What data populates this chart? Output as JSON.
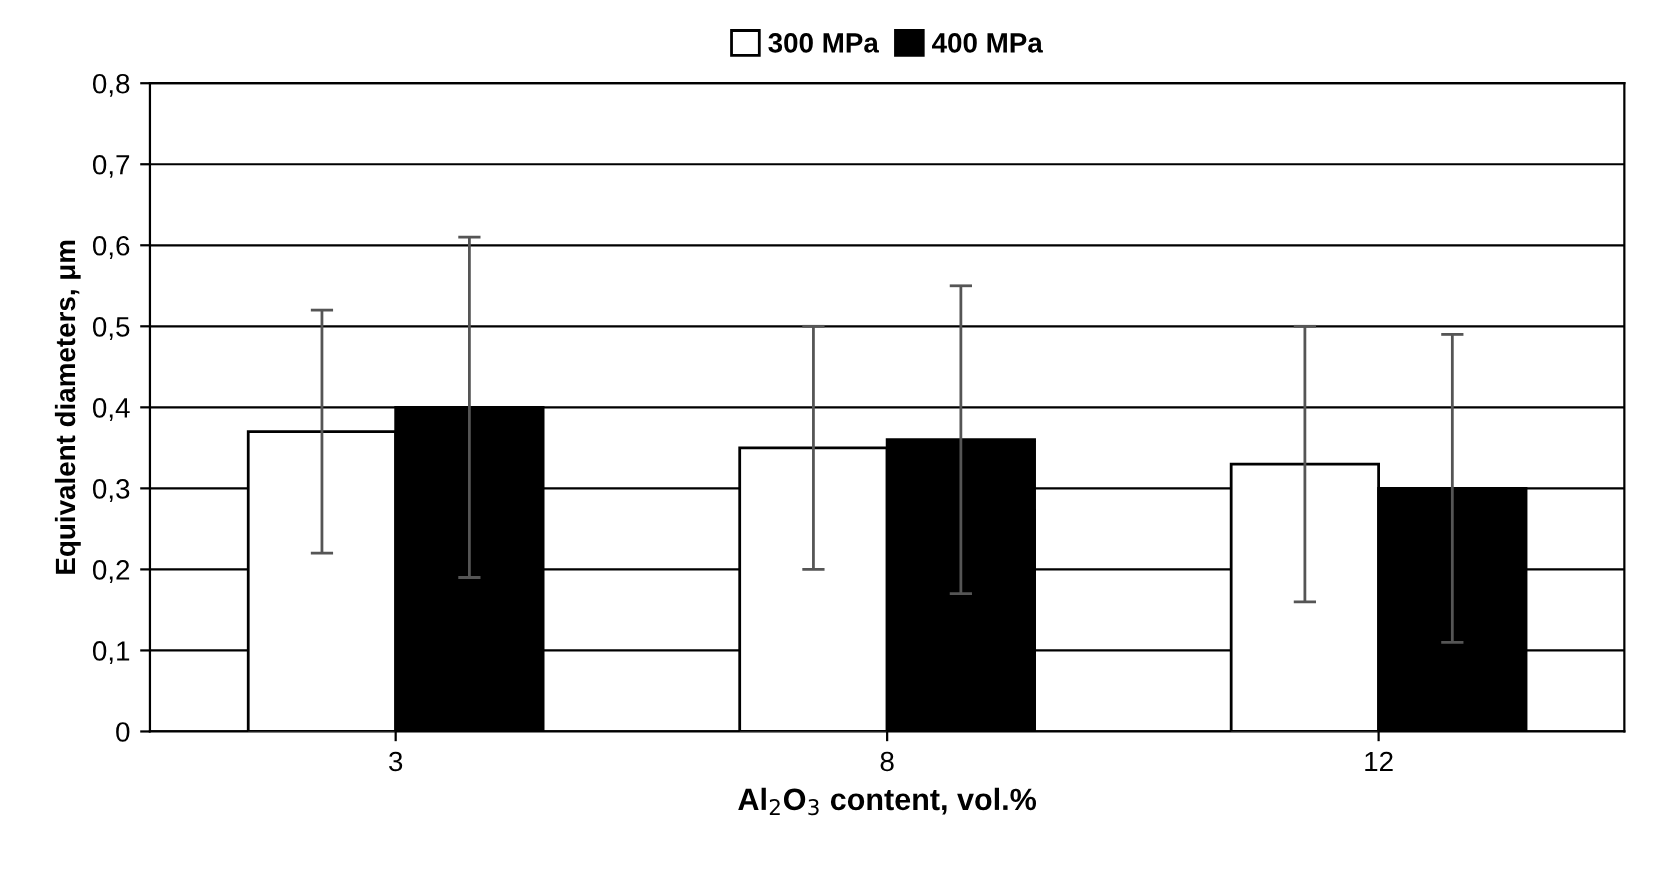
{
  "chart_data": {
    "type": "bar",
    "xlabel": "Al$_{2}$O$_{3}$ content, vol.%",
    "ylabel": "Equivalent diameters, μm",
    "categories": [
      "3",
      "8",
      "12"
    ],
    "series": [
      {
        "name": "300 MPa",
        "color": "#ffffff",
        "values": [
          0.37,
          0.35,
          0.33
        ],
        "errors": [
          [
            0.22,
            0.52
          ],
          [
            0.2,
            0.5
          ],
          [
            0.16,
            0.5
          ]
        ]
      },
      {
        "name": "400 MPa",
        "color": "#000000",
        "values": [
          0.4,
          0.36,
          0.3
        ],
        "errors": [
          [
            0.19,
            0.61
          ],
          [
            0.17,
            0.55
          ],
          [
            0.11,
            0.49
          ]
        ]
      }
    ],
    "ylim": [
      0,
      0.8
    ],
    "yticks": [
      {
        "value": 0,
        "label": "0"
      },
      {
        "value": 0.1,
        "label": "0,1"
      },
      {
        "value": 0.2,
        "label": "0,2"
      },
      {
        "value": 0.3,
        "label": "0,3"
      },
      {
        "value": 0.4,
        "label": "0,4"
      },
      {
        "value": 0.5,
        "label": "0,5"
      },
      {
        "value": 0.6,
        "label": "0,6"
      },
      {
        "value": 0.7,
        "label": "0,7"
      },
      {
        "value": 0.8,
        "label": "0,8"
      }
    ],
    "grid": "y",
    "legend": "top"
  }
}
